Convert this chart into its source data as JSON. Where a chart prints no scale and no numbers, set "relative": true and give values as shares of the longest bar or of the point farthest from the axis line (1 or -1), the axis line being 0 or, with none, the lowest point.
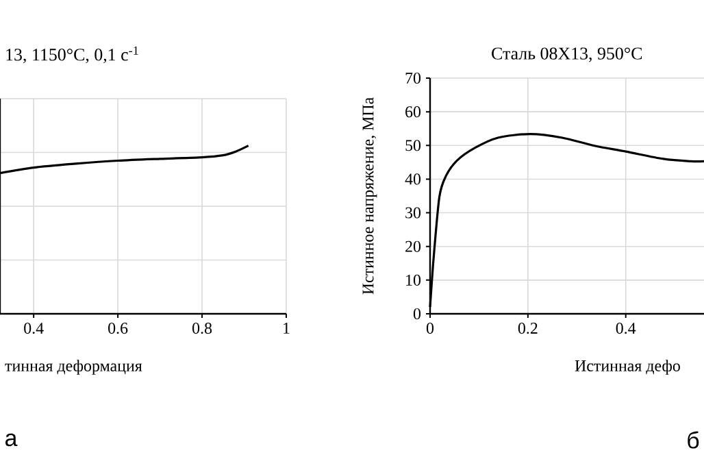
{
  "chart_data": [
    {
      "type": "line",
      "title": "13, 1150°C, 0,1 с$^{-1}$",
      "xlabel": "тинная деформация",
      "relative": true,
      "grid": true,
      "xlim": [
        0.32,
        1
      ],
      "xticks": [
        0.4,
        0.6,
        0.8,
        1
      ],
      "tick_labels": "x",
      "annotations": [
        "а"
      ],
      "series": [
        {
          "color": "#000000",
          "x": [
            0.32,
            0.4,
            0.5,
            0.6,
            0.7,
            0.8,
            0.85,
            0.88,
            0.91
          ],
          "values": [
            0.837,
            0.87,
            0.893,
            0.911,
            0.922,
            0.931,
            0.943,
            0.965,
            1
          ]
        }
      ]
    },
    {
      "type": "line",
      "title": "Сталь 08Х13, 950°C",
      "xlabel": "Истинная дефо",
      "ylabel": "Истинное напряжение, МПа",
      "grid": true,
      "xlim": [
        0,
        0.56
      ],
      "ylim": [
        0,
        70
      ],
      "xticks": [
        0,
        0.2,
        0.4
      ],
      "yticks": [
        0,
        10,
        20,
        30,
        40,
        50,
        60,
        70
      ],
      "annotations": [
        "б"
      ],
      "series": [
        {
          "color": "#000000",
          "x": [
            0,
            0.0075,
            0.019,
            0.032,
            0.055,
            0.092,
            0.139,
            0.205,
            0.27,
            0.336,
            0.4,
            0.477,
            0.533,
            0.56
          ],
          "values": [
            2,
            17,
            34.7,
            40.8,
            45.5,
            49.3,
            52.3,
            53.4,
            52.3,
            49.9,
            48.2,
            46,
            45.3,
            45.3
          ]
        }
      ]
    }
  ]
}
